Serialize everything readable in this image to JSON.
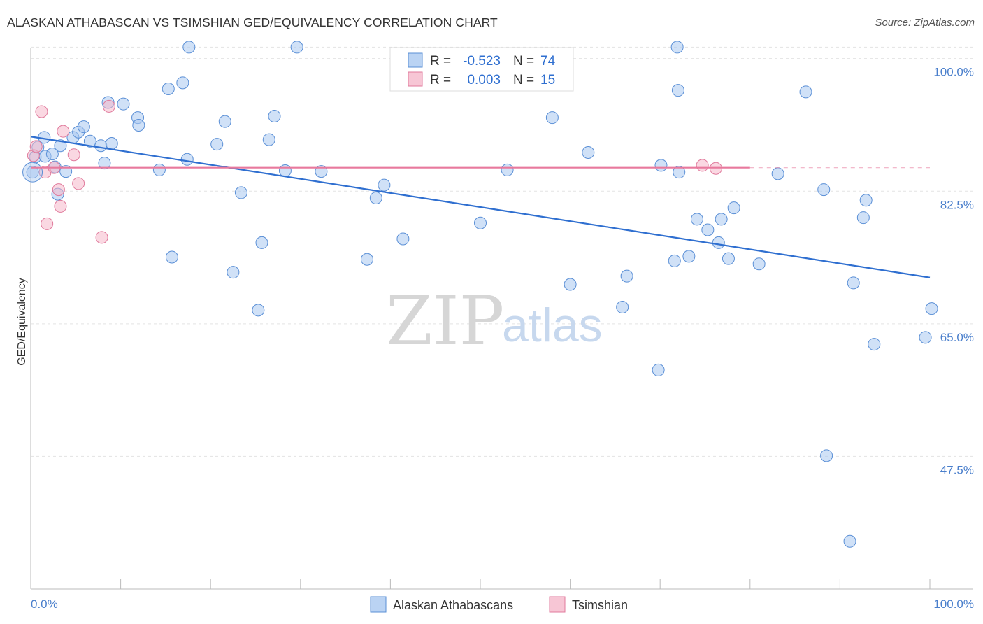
{
  "title": "ALASKAN ATHABASCAN VS TSIMSHIAN GED/EQUIVALENCY CORRELATION CHART",
  "source": "Source: ZipAtlas.com",
  "watermark": {
    "zip": "ZIP",
    "atlas": "atlas"
  },
  "stats": {
    "r_label": "R =",
    "n_label": "N =",
    "rows": [
      {
        "r": "-0.523",
        "n": "74",
        "color": "#a9c8f0"
      },
      {
        "r": "0.003",
        "n": "15",
        "color": "#f5b8cb"
      }
    ]
  },
  "chart_data": {
    "type": "scatter",
    "ylabel": "GED/Equivalency",
    "xlim": [
      0,
      100
    ],
    "ylim": [
      30,
      102
    ],
    "x_tick_labels": [
      "0.0%",
      "100.0%"
    ],
    "y_ticks": [
      47.5,
      65.0,
      82.5,
      100.0
    ],
    "y_tick_labels": [
      "47.5%",
      "65.0%",
      "82.5%",
      "100.0%"
    ],
    "grid": true,
    "legend_position": "bottom-center",
    "series": [
      {
        "name": "Alaskan Athabascans",
        "color": "#a9c8f0",
        "stroke": "#5a8fd6",
        "trend": {
          "x": [
            0,
            100
          ],
          "y": [
            89.7,
            71.1
          ],
          "color": "#2f6fd0"
        },
        "points": [
          [
            0.5,
            87.0
          ],
          [
            0.8,
            88.3
          ],
          [
            1.5,
            89.6
          ],
          [
            1.6,
            87.1
          ],
          [
            2.4,
            87.4
          ],
          [
            2.7,
            85.7
          ],
          [
            3.0,
            82.1
          ],
          [
            3.3,
            88.5
          ],
          [
            3.9,
            85.1
          ],
          [
            4.7,
            89.6
          ],
          [
            5.3,
            90.3
          ],
          [
            5.9,
            91.0
          ],
          [
            6.6,
            89.1
          ],
          [
            7.8,
            88.5
          ],
          [
            8.2,
            86.2
          ],
          [
            8.6,
            94.2
          ],
          [
            9.0,
            88.8
          ],
          [
            10.3,
            94.0
          ],
          [
            11.9,
            92.2
          ],
          [
            12.0,
            91.2
          ],
          [
            14.3,
            85.3
          ],
          [
            15.3,
            96.0
          ],
          [
            16.9,
            96.8
          ],
          [
            15.7,
            73.8
          ],
          [
            17.4,
            86.7
          ],
          [
            17.6,
            101.5
          ],
          [
            20.7,
            88.7
          ],
          [
            21.6,
            91.7
          ],
          [
            22.5,
            71.8
          ],
          [
            23.4,
            82.3
          ],
          [
            25.3,
            66.8
          ],
          [
            25.7,
            75.7
          ],
          [
            26.5,
            89.3
          ],
          [
            27.1,
            92.4
          ],
          [
            28.3,
            85.2
          ],
          [
            29.6,
            101.5
          ],
          [
            32.3,
            85.1
          ],
          [
            37.4,
            73.5
          ],
          [
            38.4,
            81.6
          ],
          [
            39.3,
            83.3
          ],
          [
            41.4,
            76.2
          ],
          [
            50.0,
            78.3
          ],
          [
            53.0,
            85.3
          ],
          [
            58.0,
            92.2
          ],
          [
            60.0,
            70.2
          ],
          [
            62.0,
            87.6
          ],
          [
            65.8,
            67.2
          ],
          [
            66.3,
            71.3
          ],
          [
            69.8,
            58.9
          ],
          [
            70.1,
            85.9
          ],
          [
            71.6,
            73.3
          ],
          [
            71.9,
            101.5
          ],
          [
            72.0,
            95.8
          ],
          [
            72.1,
            85.0
          ],
          [
            73.2,
            73.9
          ],
          [
            74.1,
            78.8
          ],
          [
            75.3,
            77.4
          ],
          [
            76.5,
            75.7
          ],
          [
            76.8,
            78.8
          ],
          [
            77.6,
            73.6
          ],
          [
            78.2,
            80.3
          ],
          [
            81.0,
            72.9
          ],
          [
            83.1,
            84.8
          ],
          [
            86.2,
            95.6
          ],
          [
            88.2,
            82.7
          ],
          [
            88.5,
            47.6
          ],
          [
            91.1,
            36.3
          ],
          [
            91.5,
            70.4
          ],
          [
            92.6,
            79.0
          ],
          [
            92.9,
            81.3
          ],
          [
            93.8,
            62.3
          ],
          [
            99.5,
            63.2
          ],
          [
            100.2,
            67.0
          ],
          [
            0.2,
            85.0
          ]
        ]
      },
      {
        "name": "Tsimshian",
        "color": "#f5b8cb",
        "stroke": "#e07a9c",
        "trend": {
          "x": [
            0,
            80
          ],
          "y": [
            85.6,
            85.6
          ],
          "dash_to": 100,
          "color": "#e8799d"
        },
        "points": [
          [
            0.3,
            87.2
          ],
          [
            0.6,
            88.4
          ],
          [
            1.2,
            93.0
          ],
          [
            1.6,
            85.0
          ],
          [
            1.8,
            78.2
          ],
          [
            2.6,
            85.6
          ],
          [
            3.1,
            82.7
          ],
          [
            3.3,
            80.5
          ],
          [
            3.6,
            90.4
          ],
          [
            4.8,
            87.3
          ],
          [
            5.3,
            83.5
          ],
          [
            7.9,
            76.4
          ],
          [
            8.7,
            93.7
          ],
          [
            74.7,
            85.9
          ],
          [
            76.2,
            85.5
          ]
        ]
      }
    ]
  }
}
